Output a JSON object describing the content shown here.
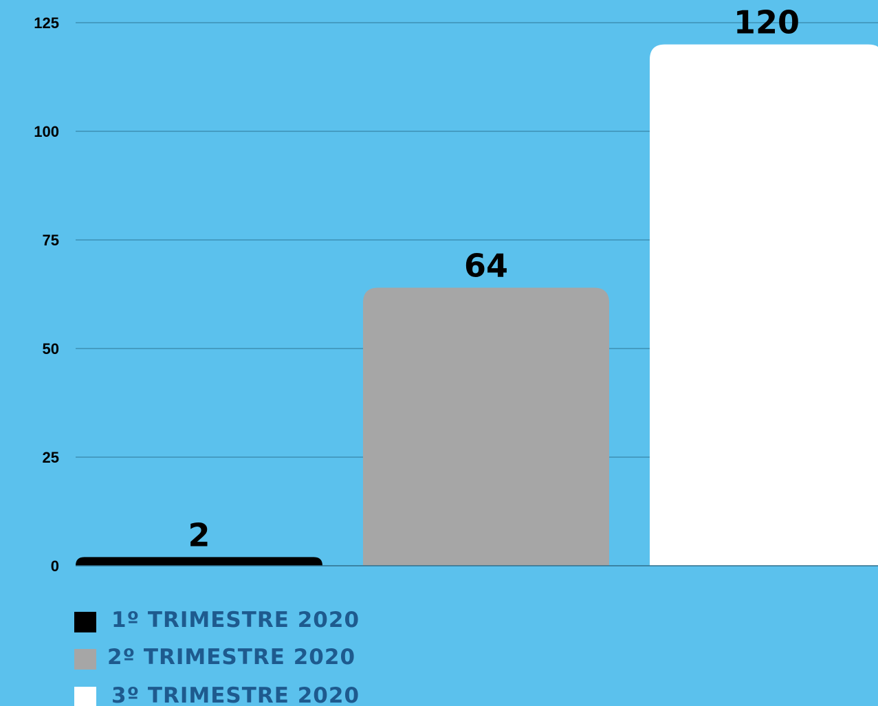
{
  "colors": {
    "background": "#5bc1ed",
    "gridline": "#3d8fb4",
    "axis": "#2f6f8c",
    "legend_text": "#1e5a8e"
  },
  "chart_data": {
    "type": "bar",
    "categories": [
      "1º TRIMESTRE 2020",
      "2º TRIMESTRE 2020",
      "3º TRIMESTRE 2020"
    ],
    "values": [
      2,
      64,
      120
    ],
    "bar_colors": [
      "#000000",
      "#a6a6a6",
      "#ffffff"
    ],
    "data_labels": [
      "2",
      "64",
      "120"
    ],
    "title": "",
    "xlabel": "",
    "ylabel": "",
    "ylim": [
      0,
      125
    ],
    "yticks": [
      0,
      25,
      50,
      75,
      100,
      125
    ],
    "grid": true,
    "legend": {
      "placement": "bottom-left",
      "entries": [
        "1º TRIMESTRE 2020",
        "2º TRIMESTRE 2020",
        "3º TRIMESTRE 2020"
      ]
    }
  }
}
